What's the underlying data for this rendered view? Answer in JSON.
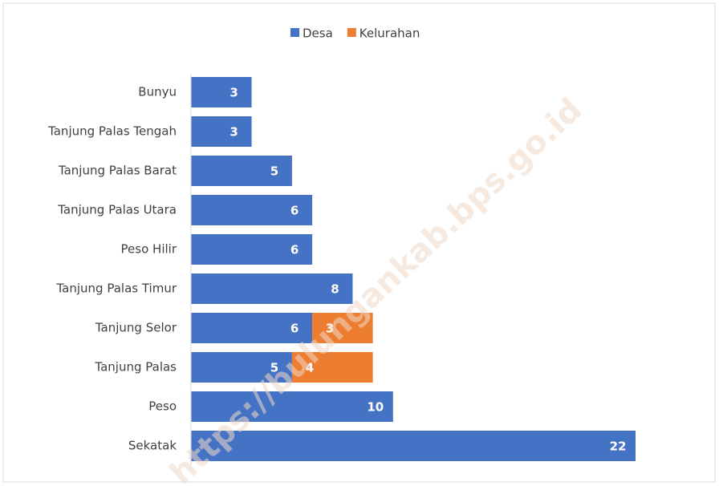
{
  "chart_data": {
    "type": "bar",
    "orientation": "horizontal",
    "stacked": true,
    "categories": [
      "Bunyu",
      "Tanjung Palas Tengah",
      "Tanjung Palas Barat",
      "Tanjung Palas Utara",
      "Peso Hilir",
      "Tanjung Palas Timur",
      "Tanjung Selor",
      "Tanjung Palas",
      "Peso",
      "Sekatak"
    ],
    "series": [
      {
        "name": "Desa",
        "color": "#4472c4",
        "values": [
          3,
          3,
          5,
          6,
          6,
          8,
          6,
          5,
          10,
          22
        ]
      },
      {
        "name": "Kelurahan",
        "color": "#ed7d31",
        "values": [
          0,
          0,
          0,
          0,
          0,
          0,
          3,
          4,
          0,
          0
        ]
      }
    ],
    "xlim": [
      0,
      22
    ],
    "legend": "top",
    "watermark": "https://bulungankab.bps.go.id"
  }
}
